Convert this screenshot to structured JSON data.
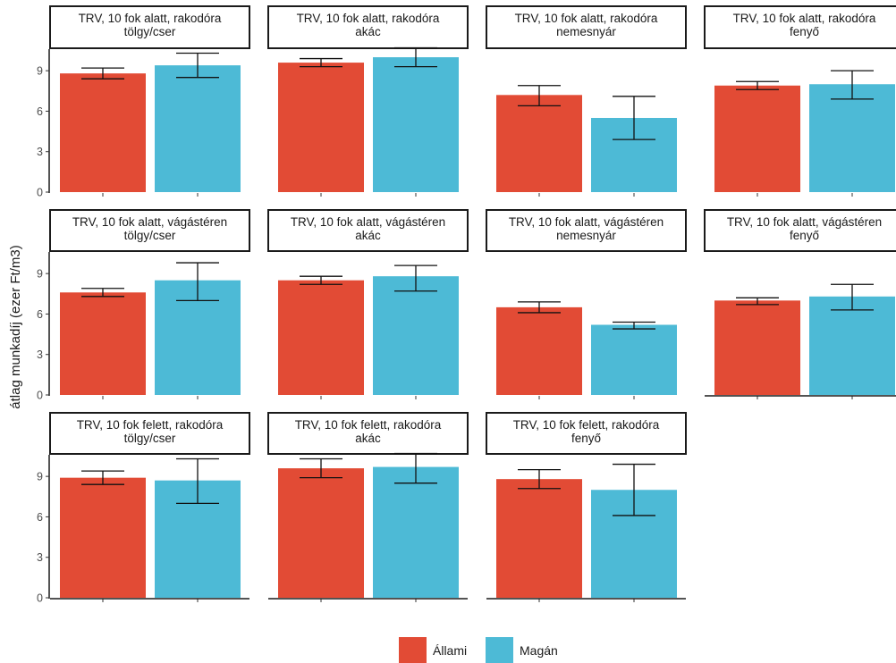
{
  "chart_data": {
    "type": "bar",
    "ylabel": "átlag munkadíj (ezer Ft/m3)",
    "xlabel": "",
    "y_ticks": [
      0,
      3,
      6,
      9
    ],
    "ylim": [
      0,
      10.6
    ],
    "grid": false,
    "legend_position": "bottom",
    "categories": [
      "Állami",
      "Magán"
    ],
    "colors": {
      "Állami": "#e24b35",
      "Magán": "#4dbad6"
    },
    "legend": [
      {
        "label": "Állami",
        "color": "#e24b35"
      },
      {
        "label": "Magán",
        "color": "#4dbad6"
      }
    ],
    "panels": [
      {
        "title_line1": "TRV, 10 fok alatt, rakodóra",
        "title_line2": "tölgy/cser",
        "values": [
          8.8,
          9.4
        ],
        "err_low": [
          8.4,
          8.5
        ],
        "err_high": [
          9.2,
          10.3
        ]
      },
      {
        "title_line1": "TRV, 10 fok alatt, rakodóra",
        "title_line2": "akác",
        "values": [
          9.6,
          10.0
        ],
        "err_low": [
          9.3,
          9.3
        ],
        "err_high": [
          9.9,
          10.7
        ]
      },
      {
        "title_line1": "TRV, 10 fok alatt, rakodóra",
        "title_line2": "nemesnyár",
        "values": [
          7.2,
          5.5
        ],
        "err_low": [
          6.4,
          3.9
        ],
        "err_high": [
          7.9,
          7.1
        ]
      },
      {
        "title_line1": "TRV, 10 fok alatt, rakodóra",
        "title_line2": "fenyő",
        "values": [
          7.9,
          8.0
        ],
        "err_low": [
          7.6,
          6.9
        ],
        "err_high": [
          8.2,
          9.0
        ]
      },
      {
        "title_line1": "TRV, 10 fok alatt, vágástéren",
        "title_line2": "tölgy/cser",
        "values": [
          7.6,
          8.5
        ],
        "err_low": [
          7.3,
          7.0
        ],
        "err_high": [
          7.9,
          9.8
        ]
      },
      {
        "title_line1": "TRV, 10 fok alatt, vágástéren",
        "title_line2": "akác",
        "values": [
          8.5,
          8.8
        ],
        "err_low": [
          8.2,
          7.7
        ],
        "err_high": [
          8.8,
          9.6
        ]
      },
      {
        "title_line1": "TRV, 10 fok alatt, vágástéren",
        "title_line2": "nemesnyár",
        "values": [
          6.5,
          5.2
        ],
        "err_low": [
          6.1,
          4.9
        ],
        "err_high": [
          6.9,
          5.4
        ]
      },
      {
        "title_line1": "TRV, 10 fok alatt, vágástéren",
        "title_line2": "fenyő",
        "values": [
          7.0,
          7.3
        ],
        "err_low": [
          6.7,
          6.3
        ],
        "err_high": [
          7.2,
          8.2
        ]
      },
      {
        "title_line1": "TRV, 10 fok felett, rakodóra",
        "title_line2": "tölgy/cser",
        "values": [
          8.9,
          8.7
        ],
        "err_low": [
          8.4,
          7.0
        ],
        "err_high": [
          9.4,
          10.3
        ]
      },
      {
        "title_line1": "TRV, 10 fok felett, rakodóra",
        "title_line2": "akác",
        "values": [
          9.6,
          9.7
        ],
        "err_low": [
          8.9,
          8.5
        ],
        "err_high": [
          10.3,
          10.7
        ]
      },
      {
        "title_line1": "TRV, 10 fok felett, rakodóra",
        "title_line2": "fenyő",
        "values": [
          8.8,
          8.0
        ],
        "err_low": [
          8.1,
          6.1
        ],
        "err_high": [
          9.5,
          9.9
        ]
      }
    ]
  }
}
